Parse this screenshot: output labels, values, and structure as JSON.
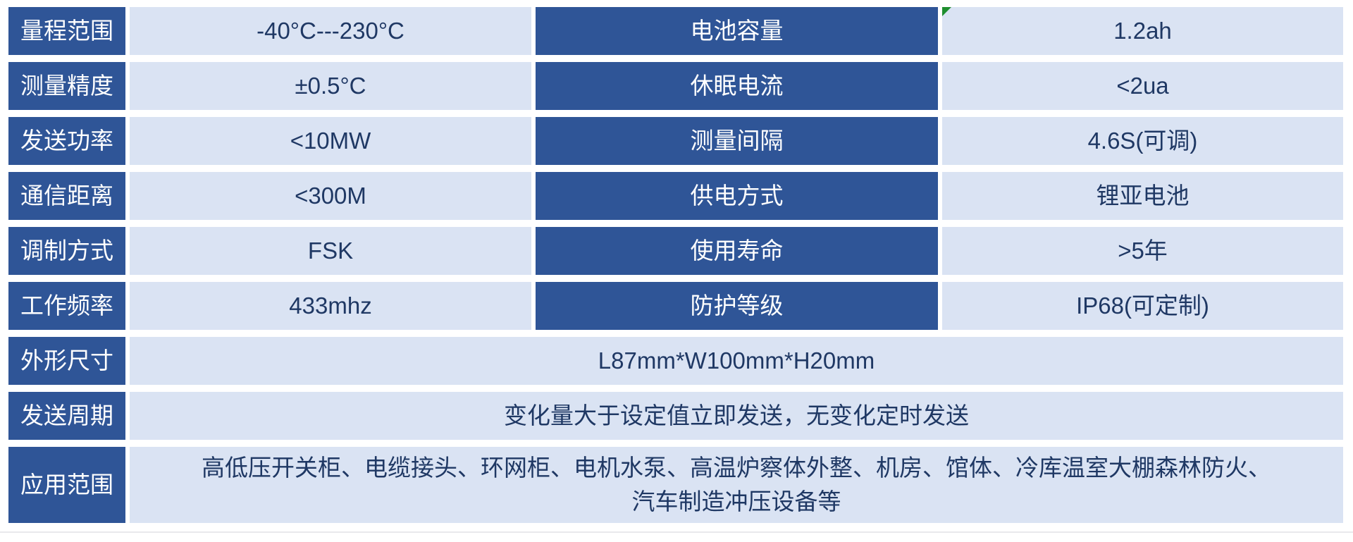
{
  "table": {
    "colors": {
      "header_bg": "#2f5597",
      "header_text": "#ffffff",
      "value_bg": "#dae3f3",
      "value_text": "#1f3864",
      "marker_green": "#1e8e2e"
    },
    "spec_rows": [
      {
        "label_left": "量程范围",
        "value_left": "-40°C---230°C",
        "label_right": "电池容量",
        "value_right": "1.2ah"
      },
      {
        "label_left": "测量精度",
        "value_left": "±0.5°C",
        "label_right": "休眠电流",
        "value_right": "<2ua"
      },
      {
        "label_left": "发送功率",
        "value_left": "<10MW",
        "label_right": "测量间隔",
        "value_right": "4.6S(可调)"
      },
      {
        "label_left": "通信距离",
        "value_left": "<300M",
        "label_right": "供电方式",
        "value_right": "锂亚电池"
      },
      {
        "label_left": "调制方式",
        "value_left": "FSK",
        "label_right": "使用寿命",
        "value_right": ">5年"
      },
      {
        "label_left": "工作频率",
        "value_left": "433mhz",
        "label_right": "防护等级",
        "value_right": "IP68(可定制)"
      }
    ],
    "full_rows": [
      {
        "label": "外形尺寸",
        "value": "L87mm*W100mm*H20mm"
      },
      {
        "label": "发送周期",
        "value": "变化量大于设定值立即发送，无变化定时发送"
      },
      {
        "label": "应用范围",
        "value": "高低压开关柜、电缆接头、环网柜、电机水泵、高温炉察体外整、机房、馆体、冷库温室大棚森林防火、汽车制造冲压设备等"
      }
    ]
  }
}
